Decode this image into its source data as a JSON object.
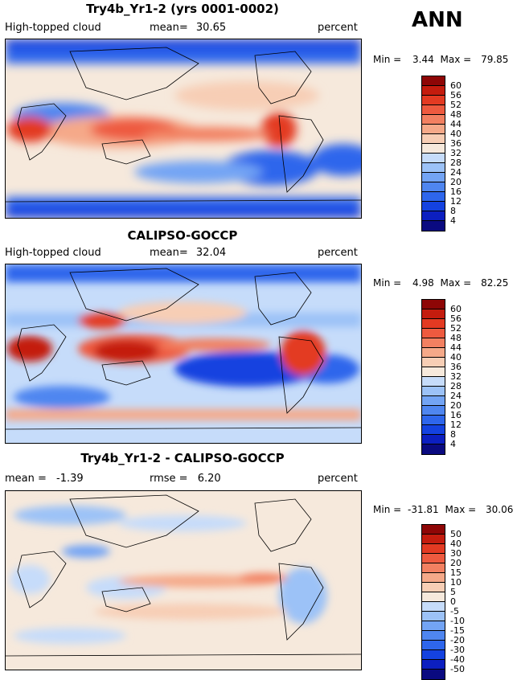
{
  "season": "ANN",
  "colors": {
    "abs_scale": [
      "#0a0a80",
      "#0c1fc0",
      "#1442e0",
      "#2e66ec",
      "#4f86f0",
      "#73a4f4",
      "#9cc2f7",
      "#c6dcfa",
      "#f6e9dc",
      "#f7ceb5",
      "#f5a989",
      "#f28061",
      "#ee5a3f",
      "#e33a22",
      "#c41c0e",
      "#8e0606"
    ],
    "diff_scale": [
      "#0a0a80",
      "#0c1fc0",
      "#1442e0",
      "#2e66ec",
      "#4f86f0",
      "#73a4f4",
      "#9cc2f7",
      "#c6dcfa",
      "#f6e9dc",
      "#f7ceb5",
      "#f5a989",
      "#f28061",
      "#ee5a3f",
      "#e33a22",
      "#c41c0e",
      "#8e0606"
    ]
  },
  "panels": [
    {
      "title": "Try4b_Yr1-2 (yrs 0001-0002)",
      "left_label": "High-topped cloud",
      "mid_label": "mean=",
      "mid_value": "30.65",
      "units": "percent",
      "min_label": "Min =",
      "min_value": "3.44",
      "max_label": "Max =",
      "max_value": "79.85",
      "colorbar_labels": [
        "60",
        "56",
        "52",
        "48",
        "44",
        "40",
        "36",
        "32",
        "28",
        "24",
        "20",
        "16",
        "12",
        "8",
        "4"
      ]
    },
    {
      "title": "CALIPSO-GOCCP",
      "left_label": "High-topped cloud",
      "mid_label": "mean=",
      "mid_value": "32.04",
      "units": "percent",
      "min_label": "Min =",
      "min_value": "4.98",
      "max_label": "Max =",
      "max_value": "82.25",
      "colorbar_labels": [
        "60",
        "56",
        "52",
        "48",
        "44",
        "40",
        "36",
        "32",
        "28",
        "24",
        "20",
        "16",
        "12",
        "8",
        "4"
      ]
    },
    {
      "title": "Try4b_Yr1-2 - CALIPSO-GOCCP",
      "left_label": "mean =",
      "left_value": "-1.39",
      "mid_label": "rmse =",
      "mid_value": "6.20",
      "units": "percent",
      "min_label": "Min =",
      "min_value": "-31.81",
      "max_label": "Max =",
      "max_value": "30.06",
      "colorbar_labels": [
        "50",
        "40",
        "30",
        "20",
        "15",
        "10",
        "5",
        "0",
        "-5",
        "-10",
        "-15",
        "-20",
        "-30",
        "-40",
        "-50"
      ]
    }
  ]
}
